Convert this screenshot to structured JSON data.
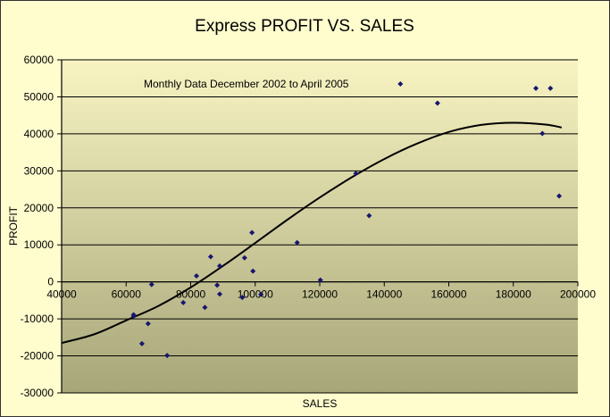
{
  "chart_data": {
    "type": "scatter",
    "title": "Express PROFIT VS. SALES",
    "annotation": "Monthly Data December 2002 to April 2005",
    "xlabel": "SALES",
    "ylabel": "PROFIT",
    "xlim": [
      40000,
      200000
    ],
    "ylim": [
      -30000,
      60000
    ],
    "x_ticks": [
      40000,
      60000,
      80000,
      100000,
      120000,
      140000,
      160000,
      180000,
      200000
    ],
    "x_tick_labels": [
      "40000",
      "60000",
      "80000",
      "100000",
      "120000",
      "140000",
      "160000",
      "180000",
      "200000"
    ],
    "y_ticks": [
      -30000,
      -20000,
      -10000,
      0,
      10000,
      20000,
      30000,
      40000,
      50000,
      60000
    ],
    "y_tick_labels": [
      "-30000",
      "-20000",
      "-10000",
      "0",
      "10000",
      "20000",
      "30000",
      "40000",
      "50000",
      "60000"
    ],
    "grid": "horizontal",
    "legend": "none",
    "points": [
      {
        "x": 62300,
        "y": -8900
      },
      {
        "x": 62300,
        "y": -9300
      },
      {
        "x": 64900,
        "y": -16700
      },
      {
        "x": 66800,
        "y": -11300
      },
      {
        "x": 67900,
        "y": -700
      },
      {
        "x": 72700,
        "y": -19900
      },
      {
        "x": 77700,
        "y": -5600
      },
      {
        "x": 81800,
        "y": 1600
      },
      {
        "x": 84400,
        "y": -6900
      },
      {
        "x": 86200,
        "y": 6800
      },
      {
        "x": 88200,
        "y": -900
      },
      {
        "x": 89000,
        "y": -3300
      },
      {
        "x": 89000,
        "y": 4300
      },
      {
        "x": 96000,
        "y": -4200
      },
      {
        "x": 96700,
        "y": 6500
      },
      {
        "x": 99000,
        "y": 13300
      },
      {
        "x": 99300,
        "y": 2900
      },
      {
        "x": 101800,
        "y": -3400
      },
      {
        "x": 113000,
        "y": 10600
      },
      {
        "x": 120200,
        "y": 500
      },
      {
        "x": 131200,
        "y": 29300
      },
      {
        "x": 135300,
        "y": 17900
      },
      {
        "x": 145000,
        "y": 53500
      },
      {
        "x": 156500,
        "y": 48300
      },
      {
        "x": 187000,
        "y": 52300
      },
      {
        "x": 189000,
        "y": 40100
      },
      {
        "x": 191500,
        "y": 52300
      },
      {
        "x": 194200,
        "y": 23200
      }
    ],
    "trendline": {
      "type": "polynomial",
      "x": [
        40000,
        50000,
        60000,
        70000,
        80000,
        90000,
        100000,
        110000,
        120000,
        130000,
        140000,
        150000,
        160000,
        170000,
        180000,
        190000,
        195000
      ],
      "y": [
        -16500,
        -14200,
        -10400,
        -6500,
        -1500,
        4300,
        10500,
        16800,
        22800,
        28300,
        33200,
        37300,
        40500,
        42400,
        43000,
        42500,
        41700
      ]
    }
  },
  "colors": {
    "background": "#fffccd",
    "plot_top": "#f8f4c2",
    "plot_bottom": "#a7a679",
    "marker": "#17176e",
    "trendline": "#000000",
    "grid": "#000000"
  }
}
